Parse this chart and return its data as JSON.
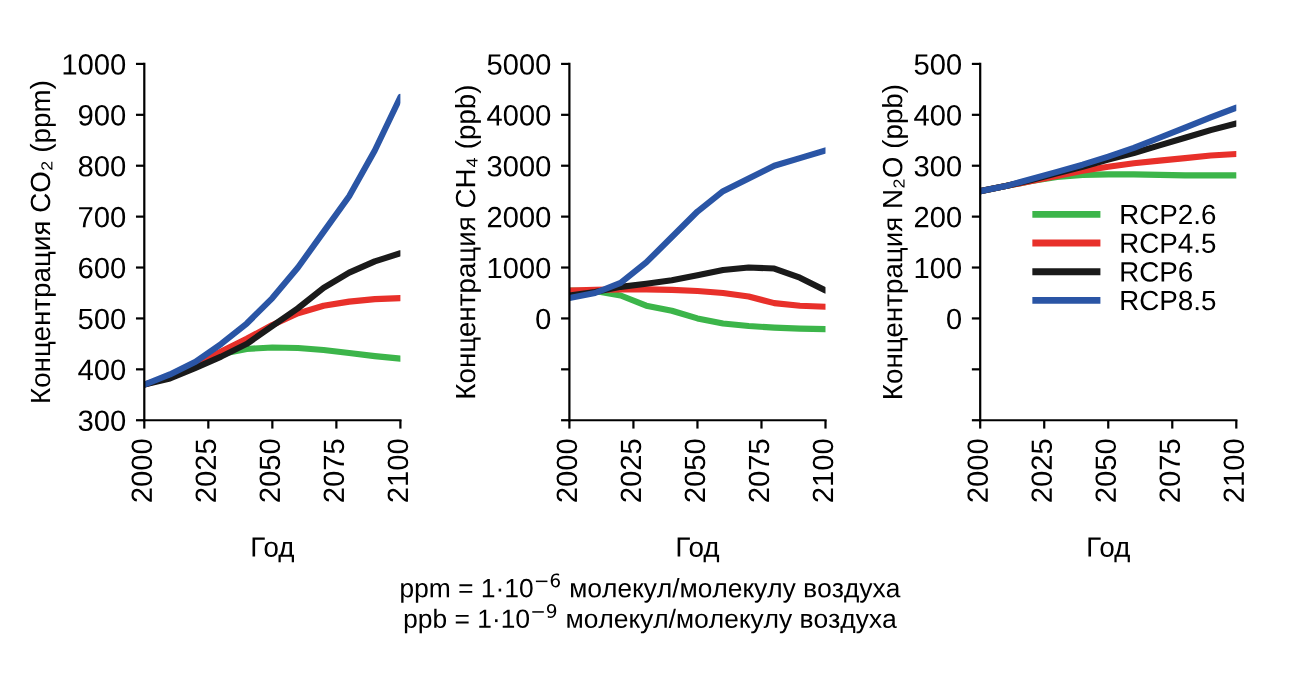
{
  "chart_data": [
    {
      "type": "line",
      "ylabel": "Концентрация CO₂ (ppm)",
      "xlabel": "Год",
      "x": [
        2000,
        2010,
        2020,
        2030,
        2040,
        2050,
        2060,
        2070,
        2080,
        2090,
        2100
      ],
      "xlim": [
        2000,
        2100
      ],
      "xticks": [
        2000,
        2025,
        2050,
        2075,
        2100
      ],
      "ylim": [
        300,
        1000
      ],
      "yticks": [
        300,
        400,
        500,
        600,
        700,
        800,
        900,
        1000
      ],
      "grid": false,
      "legend": false,
      "series": [
        {
          "color": "#3cb54a",
          "values": [
            null,
            null,
            410,
            430,
            440,
            443,
            442,
            438,
            432,
            426,
            421
          ]
        },
        {
          "color": "#e8302a",
          "values": [
            370,
            385,
            410,
            435,
            460,
            487,
            510,
            525,
            533,
            538,
            540
          ]
        },
        {
          "color": "#1a1a1a",
          "values": [
            370,
            382,
            403,
            425,
            450,
            485,
            520,
            560,
            590,
            612,
            628
          ]
        },
        {
          "color": "#2a55a5",
          "values": [
            370,
            390,
            415,
            450,
            490,
            540,
            600,
            670,
            740,
            830,
            935
          ]
        }
      ]
    },
    {
      "type": "line",
      "ylabel": "Концентрация CH₄ (ppb)",
      "xlabel": "Год",
      "x": [
        2000,
        2010,
        2020,
        2030,
        2040,
        2050,
        2060,
        2070,
        2080,
        2090,
        2100
      ],
      "xlim": [
        2000,
        2100
      ],
      "xticks": [
        2000,
        2025,
        2050,
        2075,
        2100
      ],
      "ylim": [
        -2000,
        5000
      ],
      "yticks": [
        {
          "value": -2000,
          "label": null
        },
        {
          "value": -1000,
          "label": null
        },
        0,
        1000,
        2000,
        3000,
        4000,
        5000
      ],
      "grid": false,
      "legend": false,
      "annotations": [
        "ppm = 1·10$^{−6}$ молекул/молекулу воздуха",
        "ppb = 1·10$^{−9}$ молекул/молекулу воздуха"
      ],
      "series": [
        {
          "color": "#3cb54a",
          "values": [
            550,
            540,
            450,
            250,
            150,
            0,
            -100,
            -150,
            -180,
            -200,
            -210
          ]
        },
        {
          "color": "#e8302a",
          "values": [
            550,
            560,
            570,
            570,
            560,
            540,
            500,
            430,
            300,
            250,
            230
          ]
        },
        {
          "color": "#1a1a1a",
          "values": [
            450,
            520,
            620,
            680,
            750,
            850,
            950,
            1000,
            980,
            800,
            550
          ]
        },
        {
          "color": "#2a55a5",
          "values": [
            400,
            500,
            700,
            1100,
            1600,
            2100,
            2500,
            2750,
            3000,
            3150,
            3300
          ]
        }
      ]
    },
    {
      "type": "line",
      "ylabel": "Концентрация N₂O (ppb)",
      "xlabel": "Год",
      "x": [
        2000,
        2010,
        2020,
        2030,
        2040,
        2050,
        2060,
        2070,
        2080,
        2090,
        2100
      ],
      "xlim": [
        2000,
        2100
      ],
      "xticks": [
        2000,
        2025,
        2050,
        2075,
        2100
      ],
      "ylim": [
        -200,
        500
      ],
      "yticks": [
        {
          "value": -200,
          "label": null
        },
        {
          "value": -100,
          "label": null
        },
        0,
        100,
        200,
        300,
        400,
        500
      ],
      "grid": false,
      "legend": "right",
      "series": [
        {
          "name": "RCP2.6",
          "color": "#3cb54a",
          "values": [
            250,
            260,
            270,
            278,
            282,
            283,
            283,
            282,
            281,
            281,
            281
          ]
        },
        {
          "name": "RCP4.5",
          "color": "#e8302a",
          "values": [
            250,
            260,
            270,
            280,
            290,
            298,
            305,
            310,
            315,
            320,
            323
          ]
        },
        {
          "name": "RCP6",
          "color": "#1a1a1a",
          "values": [
            250,
            260,
            272,
            285,
            298,
            312,
            325,
            340,
            355,
            370,
            383
          ]
        },
        {
          "name": "RCP8.5",
          "color": "#2a55a5",
          "values": [
            250,
            260,
            274,
            288,
            302,
            318,
            335,
            355,
            375,
            395,
            414
          ]
        }
      ]
    }
  ]
}
